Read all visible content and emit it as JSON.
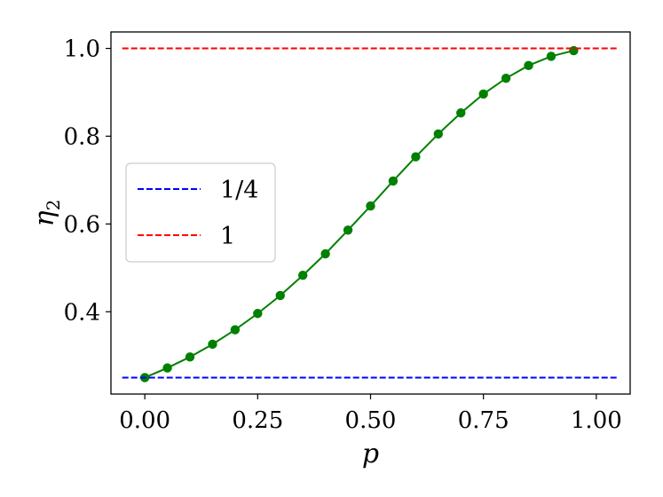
{
  "chart_data": {
    "type": "line",
    "xlabel": "p",
    "ylabel_base": "η",
    "ylabel_sub": "2",
    "xlim": [
      -0.075,
      1.075
    ],
    "ylim": [
      0.2125,
      1.0375
    ],
    "x_ticks": [
      0.0,
      0.25,
      0.5,
      0.75,
      1.0
    ],
    "x_tick_labels": [
      "0.00",
      "0.25",
      "0.50",
      "0.75",
      "1.00"
    ],
    "y_ticks": [
      0.4,
      0.6,
      0.8,
      1.0
    ],
    "y_tick_labels": [
      "0.4",
      "0.6",
      "0.8",
      "1.0"
    ],
    "grid": false,
    "legend_position": "center-left",
    "series": [
      {
        "color": "#008000",
        "style": "solid-with-markers",
        "x": [
          0.0,
          0.05,
          0.1,
          0.15,
          0.2,
          0.25,
          0.3,
          0.35,
          0.4,
          0.45,
          0.5,
          0.55,
          0.6,
          0.65,
          0.7,
          0.75,
          0.8,
          0.85,
          0.9,
          0.95
        ],
        "y": [
          0.25,
          0.272,
          0.297,
          0.326,
          0.359,
          0.396,
          0.437,
          0.483,
          0.532,
          0.586,
          0.641,
          0.698,
          0.753,
          0.805,
          0.853,
          0.896,
          0.932,
          0.961,
          0.982,
          0.995
        ]
      },
      {
        "name": "1/4",
        "color": "#0000ff",
        "style": "dashed",
        "x": [
          -0.05,
          1.05
        ],
        "y": [
          0.25,
          0.25
        ]
      },
      {
        "name": "1",
        "color": "#ff0000",
        "style": "dashed",
        "x": [
          -0.05,
          1.05
        ],
        "y": [
          1.0,
          1.0
        ]
      }
    ],
    "legend": [
      {
        "label": "1/4",
        "color": "#0000ff"
      },
      {
        "label": "1",
        "color": "#ff0000"
      }
    ]
  }
}
